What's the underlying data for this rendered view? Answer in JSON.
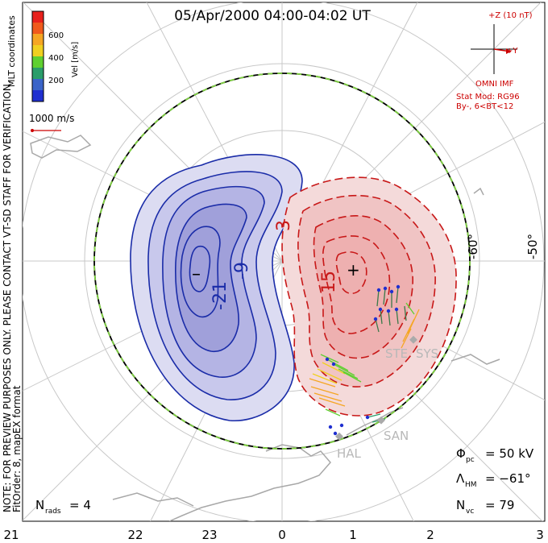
{
  "title": "05/Apr/2000 04:00-04:02 UT",
  "coords_label": "MLT coordinates",
  "colorbar": {
    "label": "Vel [m/s]",
    "ticks": [
      "600",
      "400",
      "200"
    ],
    "colors": [
      "#e8211c",
      "#f05a1c",
      "#f5a623",
      "#f0d020",
      "#5fd030",
      "#2a9d6a",
      "#3a64c8",
      "#1f2fd0"
    ]
  },
  "scale_vector": "1000 m/s",
  "imf": {
    "z_label": "+Z (10 nT)",
    "y_label": "+Y",
    "source": "OMNI IMF",
    "model": "Stat Mod: RG96",
    "bin": "By-, 6<BT<12"
  },
  "note_line1": "NOTE: FOR PREVIEW PURPOSES ONLY. PLEASE CONTACT VT-SD STAFF FOR VERIFICATION.",
  "note_line2": "FitOrder: 8, mapEX format",
  "lat_labels": [
    "-60°",
    "-50°"
  ],
  "mlt_labels": [
    "21",
    "22",
    "23",
    "0",
    "1",
    "2",
    "3"
  ],
  "contours": {
    "negative_labels": [
      "-9",
      "-21"
    ],
    "positive_labels": [
      "3",
      "15"
    ],
    "min_symbol": "–",
    "max_symbol": "+"
  },
  "stations": [
    "STE",
    "SYS",
    "SAN",
    "HAL"
  ],
  "stats": {
    "phi_pc": {
      "symbol": "Φ",
      "sub": "pc",
      "value": "= 50 kV"
    },
    "lambda_hm": {
      "symbol": "Λ",
      "sub": "HM",
      "value": "= −61°"
    },
    "n_vc": {
      "symbol": "N",
      "sub": "vc",
      "value": "= 79"
    },
    "n_rads": {
      "symbol": "N",
      "sub": "rads",
      "value": "= 4"
    }
  }
}
